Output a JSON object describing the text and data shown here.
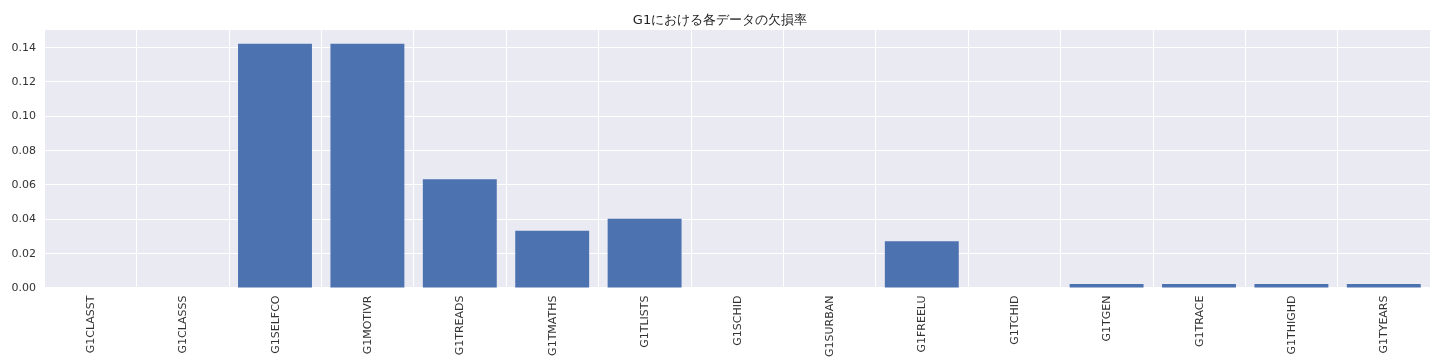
{
  "chart_data": {
    "type": "bar",
    "title": "G1における各データの欠損率",
    "categories": [
      "G1CLASST",
      "G1CLASSS",
      "G1SELFCO",
      "G1MOTIVR",
      "G1TREADS",
      "G1TMATHS",
      "G1TLISTS",
      "G1SCHID",
      "G1SURBAN",
      "G1FREELU",
      "G1TCHID",
      "G1TGEN",
      "G1TRACE",
      "G1THIGHD",
      "G1TYEARS"
    ],
    "values": [
      0,
      0,
      0.142,
      0.142,
      0.063,
      0.033,
      0.04,
      0,
      0,
      0.027,
      0,
      0.002,
      0.002,
      0.002,
      0.002
    ],
    "color": "#4c72b0",
    "ylim": [
      0,
      0.15
    ],
    "yticks": [
      {
        "value": 0,
        "label": "0.00"
      },
      {
        "value": 0.02,
        "label": "0.02"
      },
      {
        "value": 0.04,
        "label": "0.04"
      },
      {
        "value": 0.06,
        "label": "0.06"
      },
      {
        "value": 0.08,
        "label": "0.08"
      },
      {
        "value": 0.1,
        "label": "0.10"
      },
      {
        "value": 0.12,
        "label": "0.12"
      },
      {
        "value": 0.14,
        "label": "0.14"
      }
    ],
    "grid": true
  }
}
